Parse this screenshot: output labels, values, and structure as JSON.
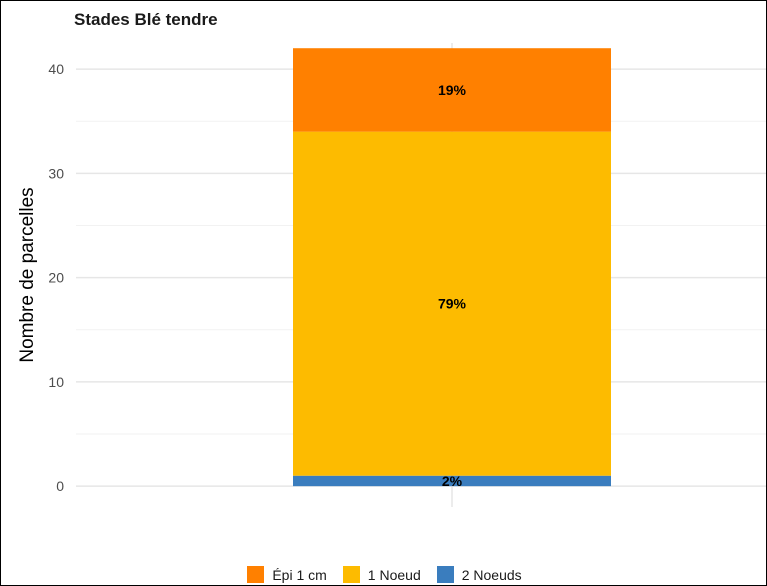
{
  "chart_data": {
    "type": "bar",
    "stacked": true,
    "title": "Stades Blé tendre",
    "xlabel": "",
    "ylabel": "Nombre de parcelles",
    "ylim": [
      -2,
      42.5
    ],
    "yticks": [
      0,
      10,
      20,
      30,
      40
    ],
    "grid": true,
    "legend_position": "bottom",
    "categories": [
      ""
    ],
    "series": [
      {
        "name": "2 Noeuds",
        "values": [
          1
        ],
        "label": "2%",
        "color": "#3a7dbe"
      },
      {
        "name": "1 Noeud",
        "values": [
          33
        ],
        "label": "79%",
        "color": "#fdbb00"
      },
      {
        "name": "Épi 1 cm",
        "values": [
          8
        ],
        "label": "19%",
        "color": "#ff8000"
      }
    ],
    "legend_order": [
      "Épi 1 cm",
      "1 Noeud",
      "2 Noeuds"
    ]
  }
}
